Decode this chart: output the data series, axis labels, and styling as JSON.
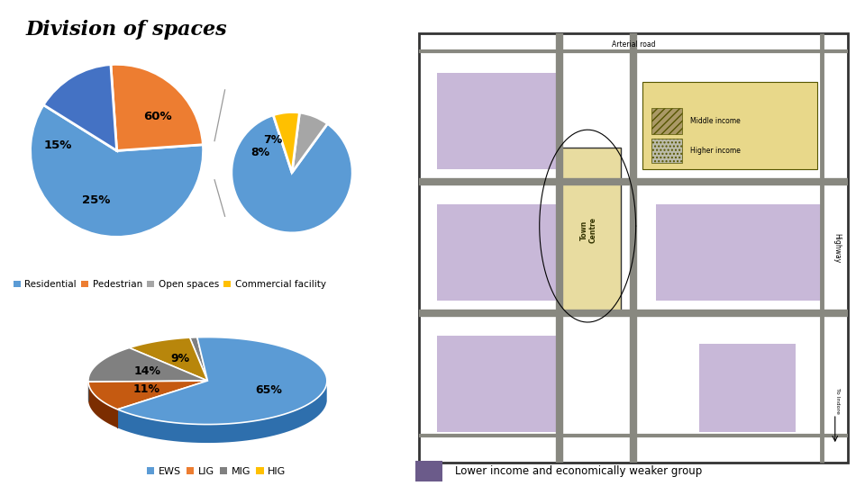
{
  "title": "Division of spaces",
  "pie1_values": [
    60,
    25,
    15
  ],
  "pie1_colors": [
    "#5B9BD5",
    "#ED7D31",
    "#4472C4"
  ],
  "pie1_labels": [
    "60%",
    "25%",
    "15%"
  ],
  "pie1_startangle": 148,
  "pie2_values": [
    85,
    8,
    7
  ],
  "pie2_colors": [
    "#5B9BD5",
    "#A6A6A6",
    "#FFC000"
  ],
  "pie2_labels": [
    "",
    "8%",
    "7%"
  ],
  "pie2_startangle": 108,
  "legend1_labels": [
    "Residential",
    "Pedestrian",
    "Open spaces",
    "Commercial facility"
  ],
  "legend1_colors": [
    "#5B9BD5",
    "#ED7D31",
    "#A6A6A6",
    "#FFC000"
  ],
  "pie3_values": [
    65,
    11,
    14,
    9,
    1
  ],
  "pie3_colors_top": [
    "#5B9BD5",
    "#C55A11",
    "#808080",
    "#B8860B",
    "#808080"
  ],
  "pie3_colors_dark": [
    "#2E6FAD",
    "#7B2D00",
    "#505050",
    "#7A5900",
    "#505050"
  ],
  "pie3_labels": [
    "65%",
    "11%",
    "14%",
    "9%",
    ""
  ],
  "pie3_startangle": 95,
  "legend2_labels": [
    "EWS",
    "LIG",
    "MIG",
    "HIG"
  ],
  "legend2_colors": [
    "#5B9BD5",
    "#ED7D31",
    "#808080",
    "#FFC000"
  ],
  "purple_swatch": "#6B5B8A",
  "lower_income_text": "Lower income and economically weaker group",
  "bg_color": "#FFFFFF",
  "map_border_color": "#333333",
  "map_bg_color": "#F8F8F0",
  "purple_block_color": "#C8B8D8",
  "town_centre_color": "#E8DCA0",
  "arterial_road_label": "Arterial road",
  "highway_label": "Highway",
  "to_indore_label": "To Indore"
}
